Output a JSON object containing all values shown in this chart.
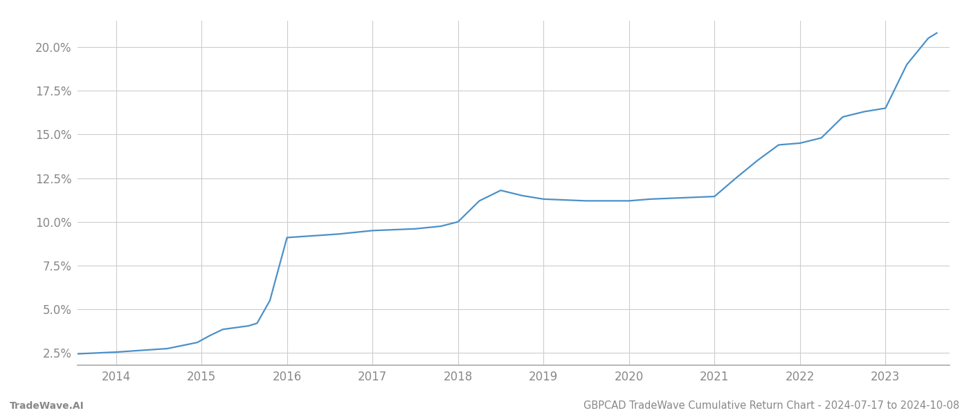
{
  "title": "GBPCAD TradeWave Cumulative Return Chart - 2024-07-17 to 2024-10-08",
  "footer_left": "TradeWave.AI",
  "line_color": "#4a90c8",
  "background_color": "#ffffff",
  "grid_color": "#cccccc",
  "x_years": [
    2014,
    2015,
    2016,
    2017,
    2018,
    2019,
    2020,
    2021,
    2022,
    2023
  ],
  "x_data": [
    2013.55,
    2014.0,
    2014.6,
    2014.95,
    2015.1,
    2015.25,
    2015.55,
    2015.65,
    2015.8,
    2016.0,
    2016.3,
    2016.6,
    2017.0,
    2017.5,
    2017.8,
    2018.0,
    2018.25,
    2018.5,
    2018.75,
    2019.0,
    2019.25,
    2019.5,
    2019.75,
    2020.0,
    2020.25,
    2020.5,
    2020.75,
    2021.0,
    2021.25,
    2021.5,
    2021.75,
    2022.0,
    2022.25,
    2022.5,
    2022.75,
    2023.0,
    2023.25,
    2023.5,
    2023.6
  ],
  "y_data": [
    2.45,
    2.55,
    2.75,
    3.1,
    3.5,
    3.85,
    4.05,
    4.2,
    5.5,
    9.1,
    9.2,
    9.3,
    9.5,
    9.6,
    9.75,
    10.0,
    11.2,
    11.8,
    11.5,
    11.3,
    11.25,
    11.2,
    11.2,
    11.2,
    11.3,
    11.35,
    11.4,
    11.45,
    12.5,
    13.5,
    14.4,
    14.5,
    14.8,
    16.0,
    16.3,
    16.5,
    19.0,
    20.5,
    20.8
  ],
  "ylim": [
    1.8,
    21.5
  ],
  "xlim": [
    2013.55,
    2023.75
  ],
  "yticks": [
    2.5,
    5.0,
    7.5,
    10.0,
    12.5,
    15.0,
    17.5,
    20.0
  ],
  "ytick_labels": [
    "2.5%",
    "5.0%",
    "7.5%",
    "10.0%",
    "12.5%",
    "15.0%",
    "17.5%",
    "20.0%"
  ],
  "line_width": 1.6,
  "tick_label_color": "#888888",
  "tick_fontsize": 12,
  "footer_fontsize": 10,
  "title_fontsize": 10.5
}
